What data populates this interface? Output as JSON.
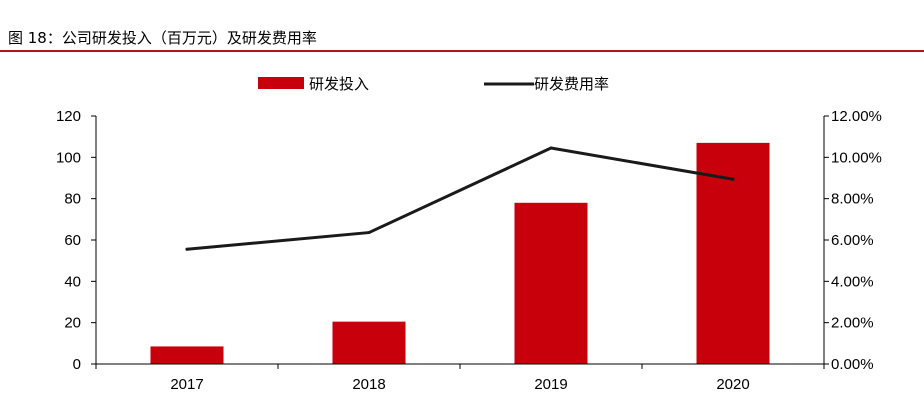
{
  "figure_title": "图 18：公司研发投入（百万元）及研发费用率",
  "colors": {
    "bar": "#c8000b",
    "line": "#1a1a1a",
    "rule": "#a8171d",
    "axis": "#000000"
  },
  "chart_data": {
    "type": "bar",
    "categories": [
      "2017",
      "2018",
      "2019",
      "2020"
    ],
    "series": [
      {
        "name": "研发投入",
        "type": "bar",
        "axis": "left",
        "values": [
          8.5,
          20.5,
          78,
          107
        ]
      },
      {
        "name": "研发费用率",
        "type": "line",
        "axis": "right",
        "values": [
          0.0555,
          0.0636,
          0.1045,
          0.0894
        ]
      }
    ],
    "left_axis": {
      "ylim": [
        0,
        120
      ],
      "ticks": [
        "0",
        "20",
        "40",
        "60",
        "80",
        "100",
        "120"
      ]
    },
    "right_axis": {
      "ylim": [
        0,
        0.12
      ],
      "ticks": [
        "0.00%",
        "2.00%",
        "4.00%",
        "6.00%",
        "8.00%",
        "10.00%",
        "12.00%"
      ]
    },
    "grid": false,
    "legend_position": "top"
  }
}
